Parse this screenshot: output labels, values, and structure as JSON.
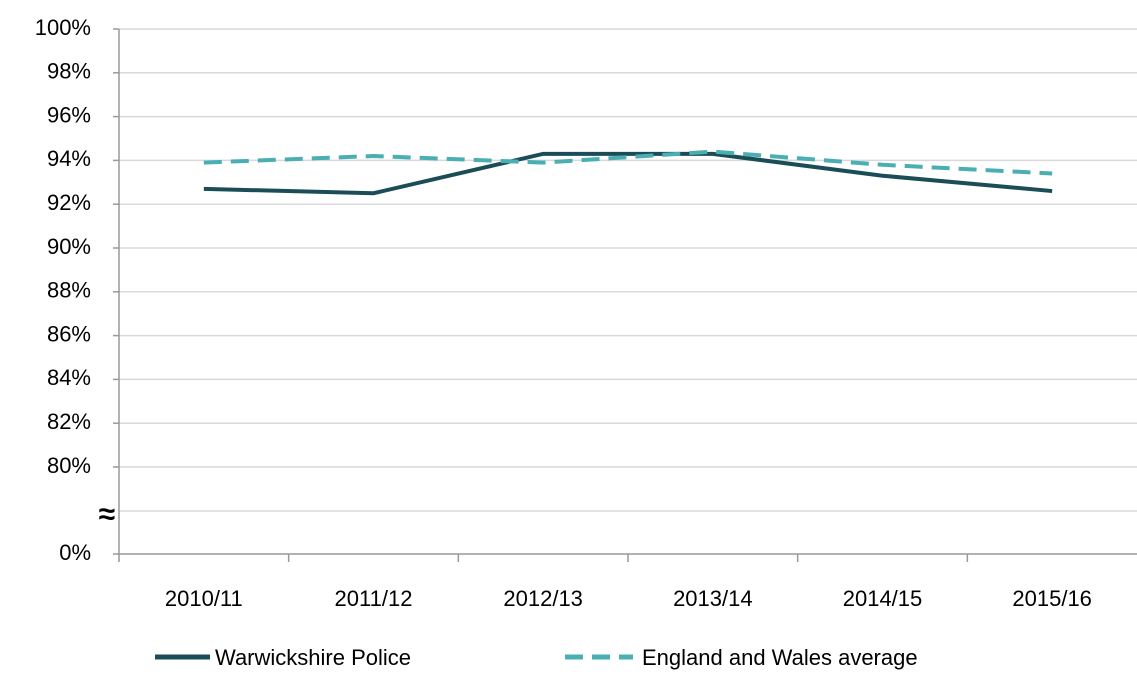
{
  "chart_data": {
    "type": "line",
    "categories": [
      "2010/11",
      "2011/12",
      "2012/13",
      "2013/14",
      "2014/15",
      "2015/16"
    ],
    "series": [
      {
        "name": "Warwickshire Police",
        "color": "#1b4d57",
        "dash": false,
        "values": [
          92.7,
          92.5,
          94.3,
          94.3,
          93.3,
          92.6
        ]
      },
      {
        "name": "England and Wales average",
        "color": "#4aafb3",
        "dash": true,
        "values": [
          93.9,
          94.2,
          93.9,
          94.4,
          93.8,
          93.4
        ]
      }
    ],
    "ylim": [
      0,
      100
    ],
    "ybreak": [
      0,
      80
    ],
    "yticks": [
      {
        "value": 0,
        "label": "0%"
      },
      {
        "value": 80,
        "label": "80%"
      },
      {
        "value": 82,
        "label": "82%"
      },
      {
        "value": 84,
        "label": "84%"
      },
      {
        "value": 86,
        "label": "86%"
      },
      {
        "value": 88,
        "label": "88%"
      },
      {
        "value": 90,
        "label": "90%"
      },
      {
        "value": 92,
        "label": "92%"
      },
      {
        "value": 94,
        "label": "94%"
      },
      {
        "value": 96,
        "label": "96%"
      },
      {
        "value": 98,
        "label": "98%"
      },
      {
        "value": 100,
        "label": "100%"
      }
    ],
    "grid": true,
    "legend": "bottom"
  }
}
